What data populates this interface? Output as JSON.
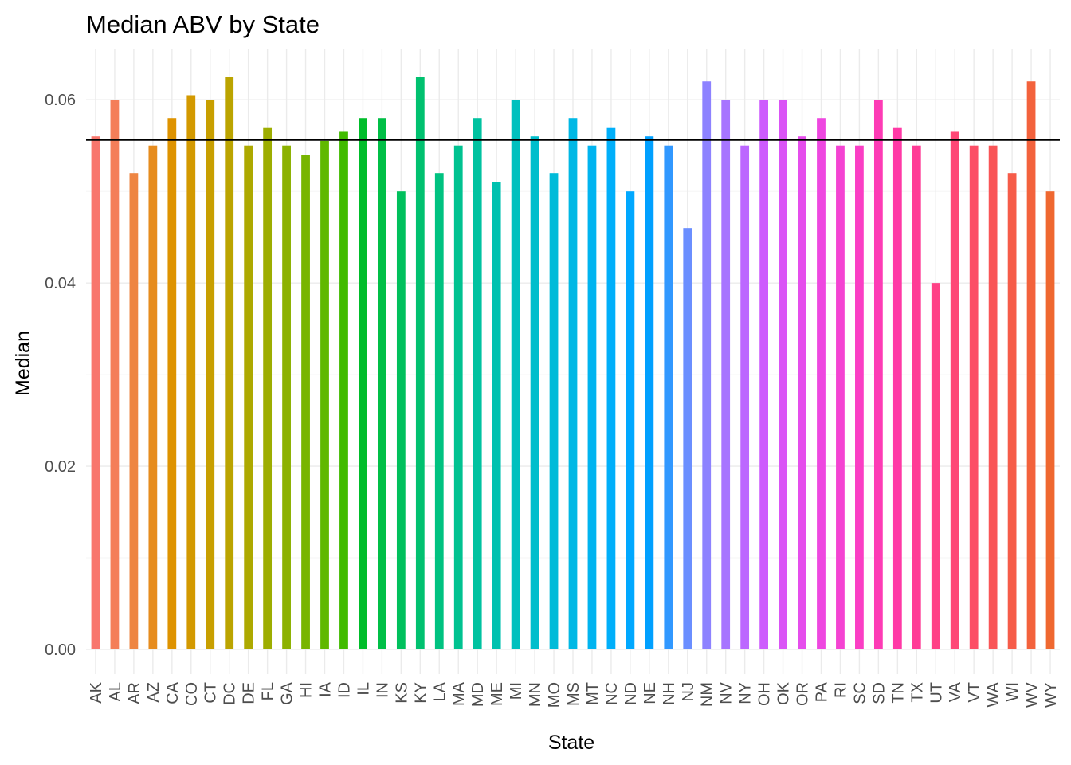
{
  "chart_data": {
    "type": "bar",
    "title": "Median ABV by State",
    "xlabel": "State",
    "ylabel": "Median",
    "ylim": [
      -0.0027,
      0.0655
    ],
    "yticks": [
      0.0,
      0.02,
      0.04,
      0.06
    ],
    "ytick_labels": [
      "0.00",
      "0.02",
      "0.04",
      "0.06"
    ],
    "grid": true,
    "legend": "none",
    "reference_line": {
      "y": 0.0556,
      "color": "#000000"
    },
    "categories": [
      "AK",
      "AL",
      "AR",
      "AZ",
      "CA",
      "CO",
      "CT",
      "DC",
      "DE",
      "FL",
      "GA",
      "HI",
      "IA",
      "ID",
      "IL",
      "IN",
      "KS",
      "KY",
      "LA",
      "MA",
      "MD",
      "ME",
      "MI",
      "MN",
      "MO",
      "MS",
      "MT",
      "NC",
      "ND",
      "NE",
      "NH",
      "NJ",
      "NM",
      "NV",
      "NY",
      "OH",
      "OK",
      "OR",
      "PA",
      "RI",
      "SC",
      "SD",
      "TN",
      "TX",
      "UT",
      "VA",
      "VT",
      "WA",
      "WI",
      "WV",
      "WY"
    ],
    "values": [
      0.056,
      0.06,
      0.052,
      0.055,
      0.058,
      0.0605,
      0.06,
      0.0625,
      0.055,
      0.057,
      0.055,
      0.054,
      0.0555,
      0.0565,
      0.058,
      0.058,
      0.05,
      0.0625,
      0.052,
      0.055,
      0.058,
      0.051,
      0.06,
      0.056,
      0.052,
      0.058,
      0.055,
      0.057,
      0.05,
      0.056,
      0.055,
      0.046,
      0.062,
      0.06,
      0.055,
      0.06,
      0.06,
      0.056,
      0.058,
      0.055,
      0.055,
      0.06,
      0.057,
      0.055,
      0.04,
      0.0565,
      0.055,
      0.055,
      0.052,
      0.062,
      0.05
    ],
    "colors": [
      "#F8766D",
      "#F47E59",
      "#EE8542",
      "#E68C1E",
      "#DE9300",
      "#D39900",
      "#C89F00",
      "#BBA400",
      "#ADA900",
      "#9DAD00",
      "#8CB100",
      "#78B500",
      "#60B800",
      "#41BB00",
      "#00BD2A",
      "#00BF46",
      "#00C05C",
      "#00C16F",
      "#00C280",
      "#00C290",
      "#00C2A0",
      "#00C1AF",
      "#00C0BE",
      "#00BECC",
      "#00BBD9",
      "#00B8E5",
      "#00B4F0",
      "#00AFFA",
      "#00A8FF",
      "#00A0FF",
      "#3198FF",
      "#6A8EFF",
      "#8D82FF",
      "#A775FF",
      "#BC67FF",
      "#CD5CFD",
      "#DA54F6",
      "#E54DEC",
      "#EE47E0",
      "#F443D2",
      "#FA3EC4",
      "#FD3BB5",
      "#FF39A6",
      "#FF3C96",
      "#FF4186",
      "#FE4776",
      "#FC4E66",
      "#F95557",
      "#F65C49",
      "#F3623C",
      "#EF6830"
    ]
  }
}
